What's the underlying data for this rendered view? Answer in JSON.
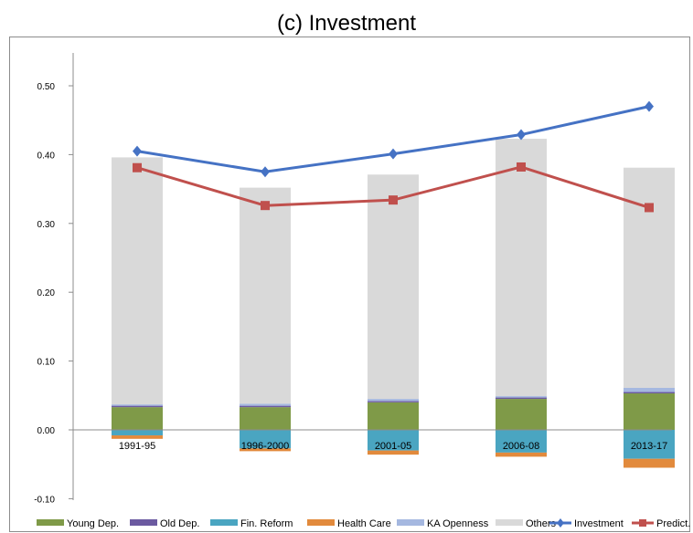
{
  "chart_data": {
    "type": "bar",
    "title": "(c)  Investment",
    "categories": [
      "1991-95",
      "1996-2000",
      "2001-05",
      "2006-08",
      "2013-17"
    ],
    "ylim": [
      -0.1,
      0.55
    ],
    "yticks": [
      "-0.10",
      "0.00",
      "0.10",
      "0.20",
      "0.30",
      "0.40",
      "0.50"
    ],
    "ytick_values": [
      -0.1,
      0.0,
      0.1,
      0.2,
      0.3,
      0.4,
      0.5
    ],
    "grid": false,
    "legend_position": "bottom",
    "series": [
      {
        "name": "Young Dep.",
        "kind": "bar",
        "color": "#7f9a48",
        "values": [
          0.033,
          0.033,
          0.04,
          0.045,
          0.053
        ]
      },
      {
        "name": "Old Dep.",
        "kind": "bar",
        "color": "#6b5aa0",
        "values": [
          0.002,
          0.002,
          0.002,
          0.002,
          0.002
        ]
      },
      {
        "name": "Fin. Reform",
        "kind": "bar",
        "color": "#4aa5c1",
        "values": [
          -0.008,
          -0.027,
          -0.03,
          -0.033,
          -0.042
        ]
      },
      {
        "name": "Health Care",
        "kind": "bar",
        "color": "#e28a3c",
        "values": [
          -0.005,
          -0.004,
          -0.006,
          -0.006,
          -0.013
        ]
      },
      {
        "name": "KA Openness",
        "kind": "bar",
        "color": "#a5b8e0",
        "values": [
          0.002,
          0.003,
          0.003,
          0.002,
          0.006
        ]
      },
      {
        "name": "Others",
        "kind": "bar",
        "color": "#d9d9d9",
        "values": [
          0.359,
          0.314,
          0.326,
          0.374,
          0.32
        ]
      },
      {
        "name": "Investment",
        "kind": "line",
        "marker": "diamond",
        "color": "#4572c4",
        "values": [
          0.405,
          0.375,
          0.401,
          0.429,
          0.47
        ]
      },
      {
        "name": "Predict.",
        "kind": "line",
        "marker": "square",
        "color": "#c0504d",
        "values": [
          0.381,
          0.326,
          0.334,
          0.382,
          0.323
        ]
      }
    ]
  }
}
